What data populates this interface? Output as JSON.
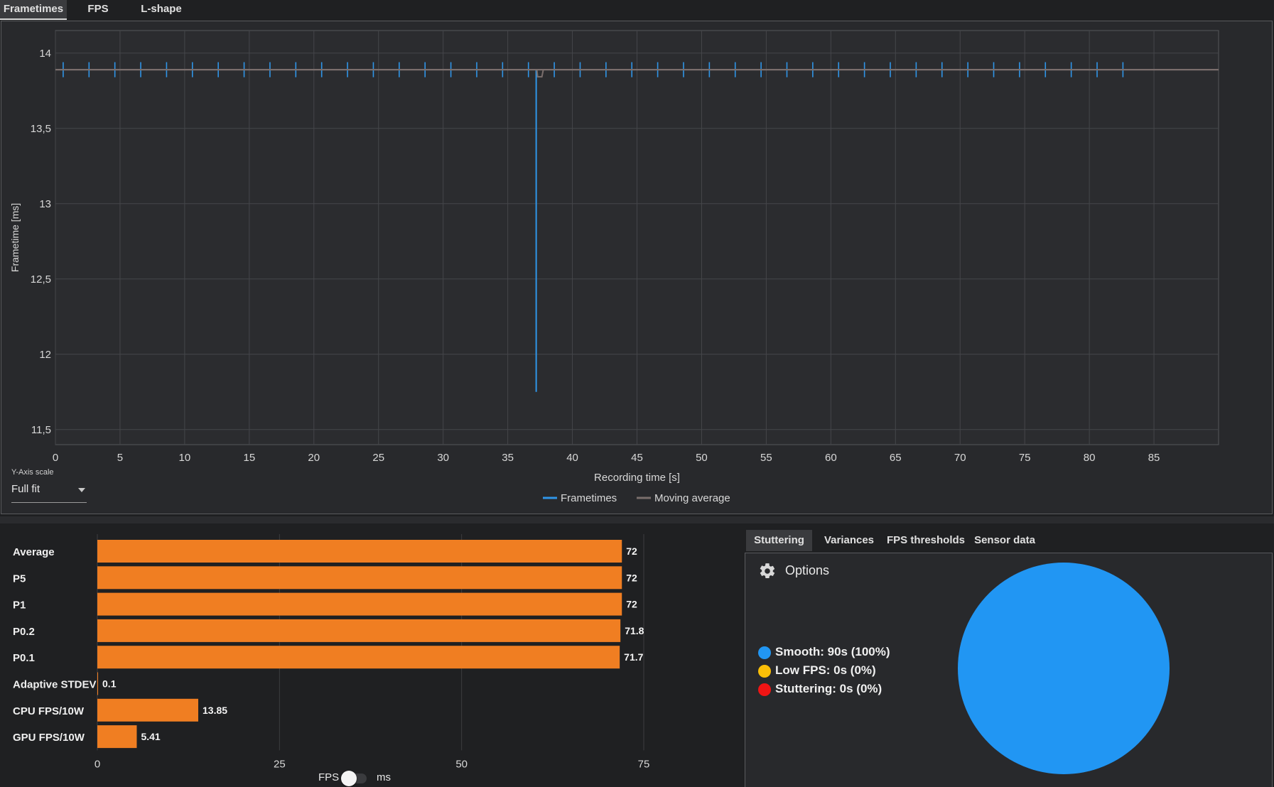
{
  "top_tabs": [
    {
      "label": "Frametimes",
      "active": true
    },
    {
      "label": "FPS",
      "active": false
    },
    {
      "label": "L-shape",
      "active": false
    }
  ],
  "frametime_chart": {
    "ylabel": "Frametime [ms]",
    "xlabel": "Recording time [s]",
    "y_axis_scale_label": "Y-Axis scale",
    "y_axis_scale_value": "Full fit",
    "legend": [
      {
        "name": "Frametimes",
        "color": "#2f95e8"
      },
      {
        "name": "Moving average",
        "color": "#7a6e6c"
      }
    ]
  },
  "chart_data": [
    {
      "type": "line",
      "title": "",
      "xlabel": "Recording time [s]",
      "ylabel": "Frametime [ms]",
      "xlim": [
        0,
        90
      ],
      "ylim": [
        11.4,
        14.15
      ],
      "x_ticks": [
        "0",
        "5",
        "10",
        "15",
        "20",
        "25",
        "30",
        "35",
        "40",
        "45",
        "50",
        "55",
        "60",
        "65",
        "70",
        "75",
        "80",
        "85"
      ],
      "x_tick_values": [
        0,
        5,
        10,
        15,
        20,
        25,
        30,
        35,
        40,
        45,
        50,
        55,
        60,
        65,
        70,
        75,
        80,
        85
      ],
      "y_ticks": [
        "11,5",
        "12",
        "12,5",
        "13",
        "13,5",
        "14"
      ],
      "y_tick_values": [
        11.5,
        12,
        12.5,
        13,
        13.5,
        14
      ],
      "grid": true,
      "legend_position": "bottom-center",
      "series": [
        {
          "name": "Frametimes",
          "color": "#2f95e8",
          "baseline": 13.89,
          "spike_times": [
            0.6,
            2.6,
            4.6,
            6.6,
            8.6,
            10.6,
            12.6,
            14.6,
            16.6,
            18.6,
            20.6,
            22.6,
            24.6,
            26.6,
            28.6,
            30.6,
            32.6,
            34.6,
            36.6,
            38.6,
            40.6,
            42.6,
            44.6,
            46.6,
            48.6,
            50.6,
            52.6,
            54.6,
            56.6,
            58.6,
            60.6,
            62.6,
            64.6,
            66.6,
            68.6,
            70.6,
            72.6,
            74.6,
            76.6,
            78.6,
            80.6,
            82.6
          ],
          "spike_high": 13.94,
          "spike_low": 13.84,
          "dip": {
            "x": 37.2,
            "y": 11.75
          }
        },
        {
          "name": "Moving average",
          "color": "#7a6e6c",
          "baseline": 13.89
        }
      ]
    },
    {
      "type": "bar",
      "orientation": "horizontal",
      "title": "",
      "xlabel": "",
      "ylabel": "",
      "xlim": [
        0,
        80
      ],
      "x_ticks": [
        "0",
        "25",
        "50",
        "75"
      ],
      "x_tick_values": [
        0,
        25,
        50,
        75
      ],
      "categories": [
        "Average",
        "P5",
        "P1",
        "P0.2",
        "P0.1",
        "Adaptive STDEV",
        "CPU FPS/10W",
        "GPU FPS/10W"
      ],
      "values": [
        72,
        72,
        72,
        71.8,
        71.7,
        0.1,
        13.85,
        5.41
      ],
      "value_labels": [
        "72",
        "72",
        "72",
        "71.8",
        "71.7",
        "0.1",
        "13.85",
        "5.41"
      ],
      "color": "#f07e22"
    },
    {
      "type": "pie",
      "title": "",
      "categories": [
        "Smooth",
        "Low FPS",
        "Stuttering"
      ],
      "values": [
        100,
        0,
        0
      ],
      "colors": [
        "#2196f3",
        "#fbbf07",
        "#f01414"
      ]
    }
  ],
  "fps_toggle": {
    "left_label": "FPS",
    "right_label": "ms"
  },
  "right_tabs": [
    {
      "label": "Stuttering",
      "active": true
    },
    {
      "label": "Variances",
      "active": false
    },
    {
      "label": "FPS thresholds",
      "active": false
    },
    {
      "label": "Sensor data",
      "active": false
    }
  ],
  "stuttering": {
    "options_label": "Options",
    "legend": [
      {
        "text": "Smooth:  90s (100%)",
        "color": "#2196f3"
      },
      {
        "text": "Low FPS:  0s (0%)",
        "color": "#fbbf07"
      },
      {
        "text": "Stuttering:  0s (0%)",
        "color": "#f01414"
      }
    ]
  }
}
